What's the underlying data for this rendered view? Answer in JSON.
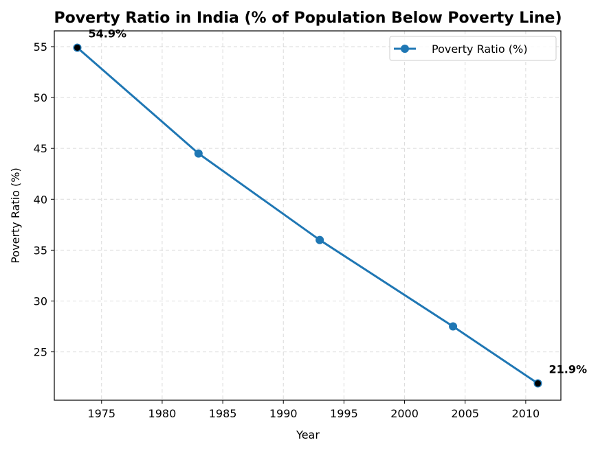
{
  "chart_data": {
    "type": "line",
    "title": "Poverty Ratio in India (% of Population Below Poverty Line)",
    "xlabel": "Year",
    "ylabel": "Poverty Ratio (%)",
    "xlim": [
      1971.1,
      2012.9
    ],
    "ylim": [
      20.25,
      56.55
    ],
    "x_ticks": [
      1975,
      1980,
      1985,
      1990,
      1995,
      2000,
      2005,
      2010
    ],
    "y_ticks": [
      25,
      30,
      35,
      40,
      45,
      50,
      55
    ],
    "grid": true,
    "legend_position": "top-right",
    "series": [
      {
        "name": "Poverty Ratio (%)",
        "color": "#1f77b4",
        "x": [
          1973,
          1983,
          1993,
          2004,
          2011
        ],
        "y": [
          54.9,
          44.5,
          36.0,
          27.5,
          21.9
        ]
      }
    ],
    "highlight_points": [
      {
        "x": 1973,
        "y": 54.9,
        "label": "54.9%",
        "marker_color": "#000000"
      },
      {
        "x": 2011,
        "y": 21.9,
        "label": "21.9%",
        "marker_color": "#000000"
      }
    ]
  }
}
